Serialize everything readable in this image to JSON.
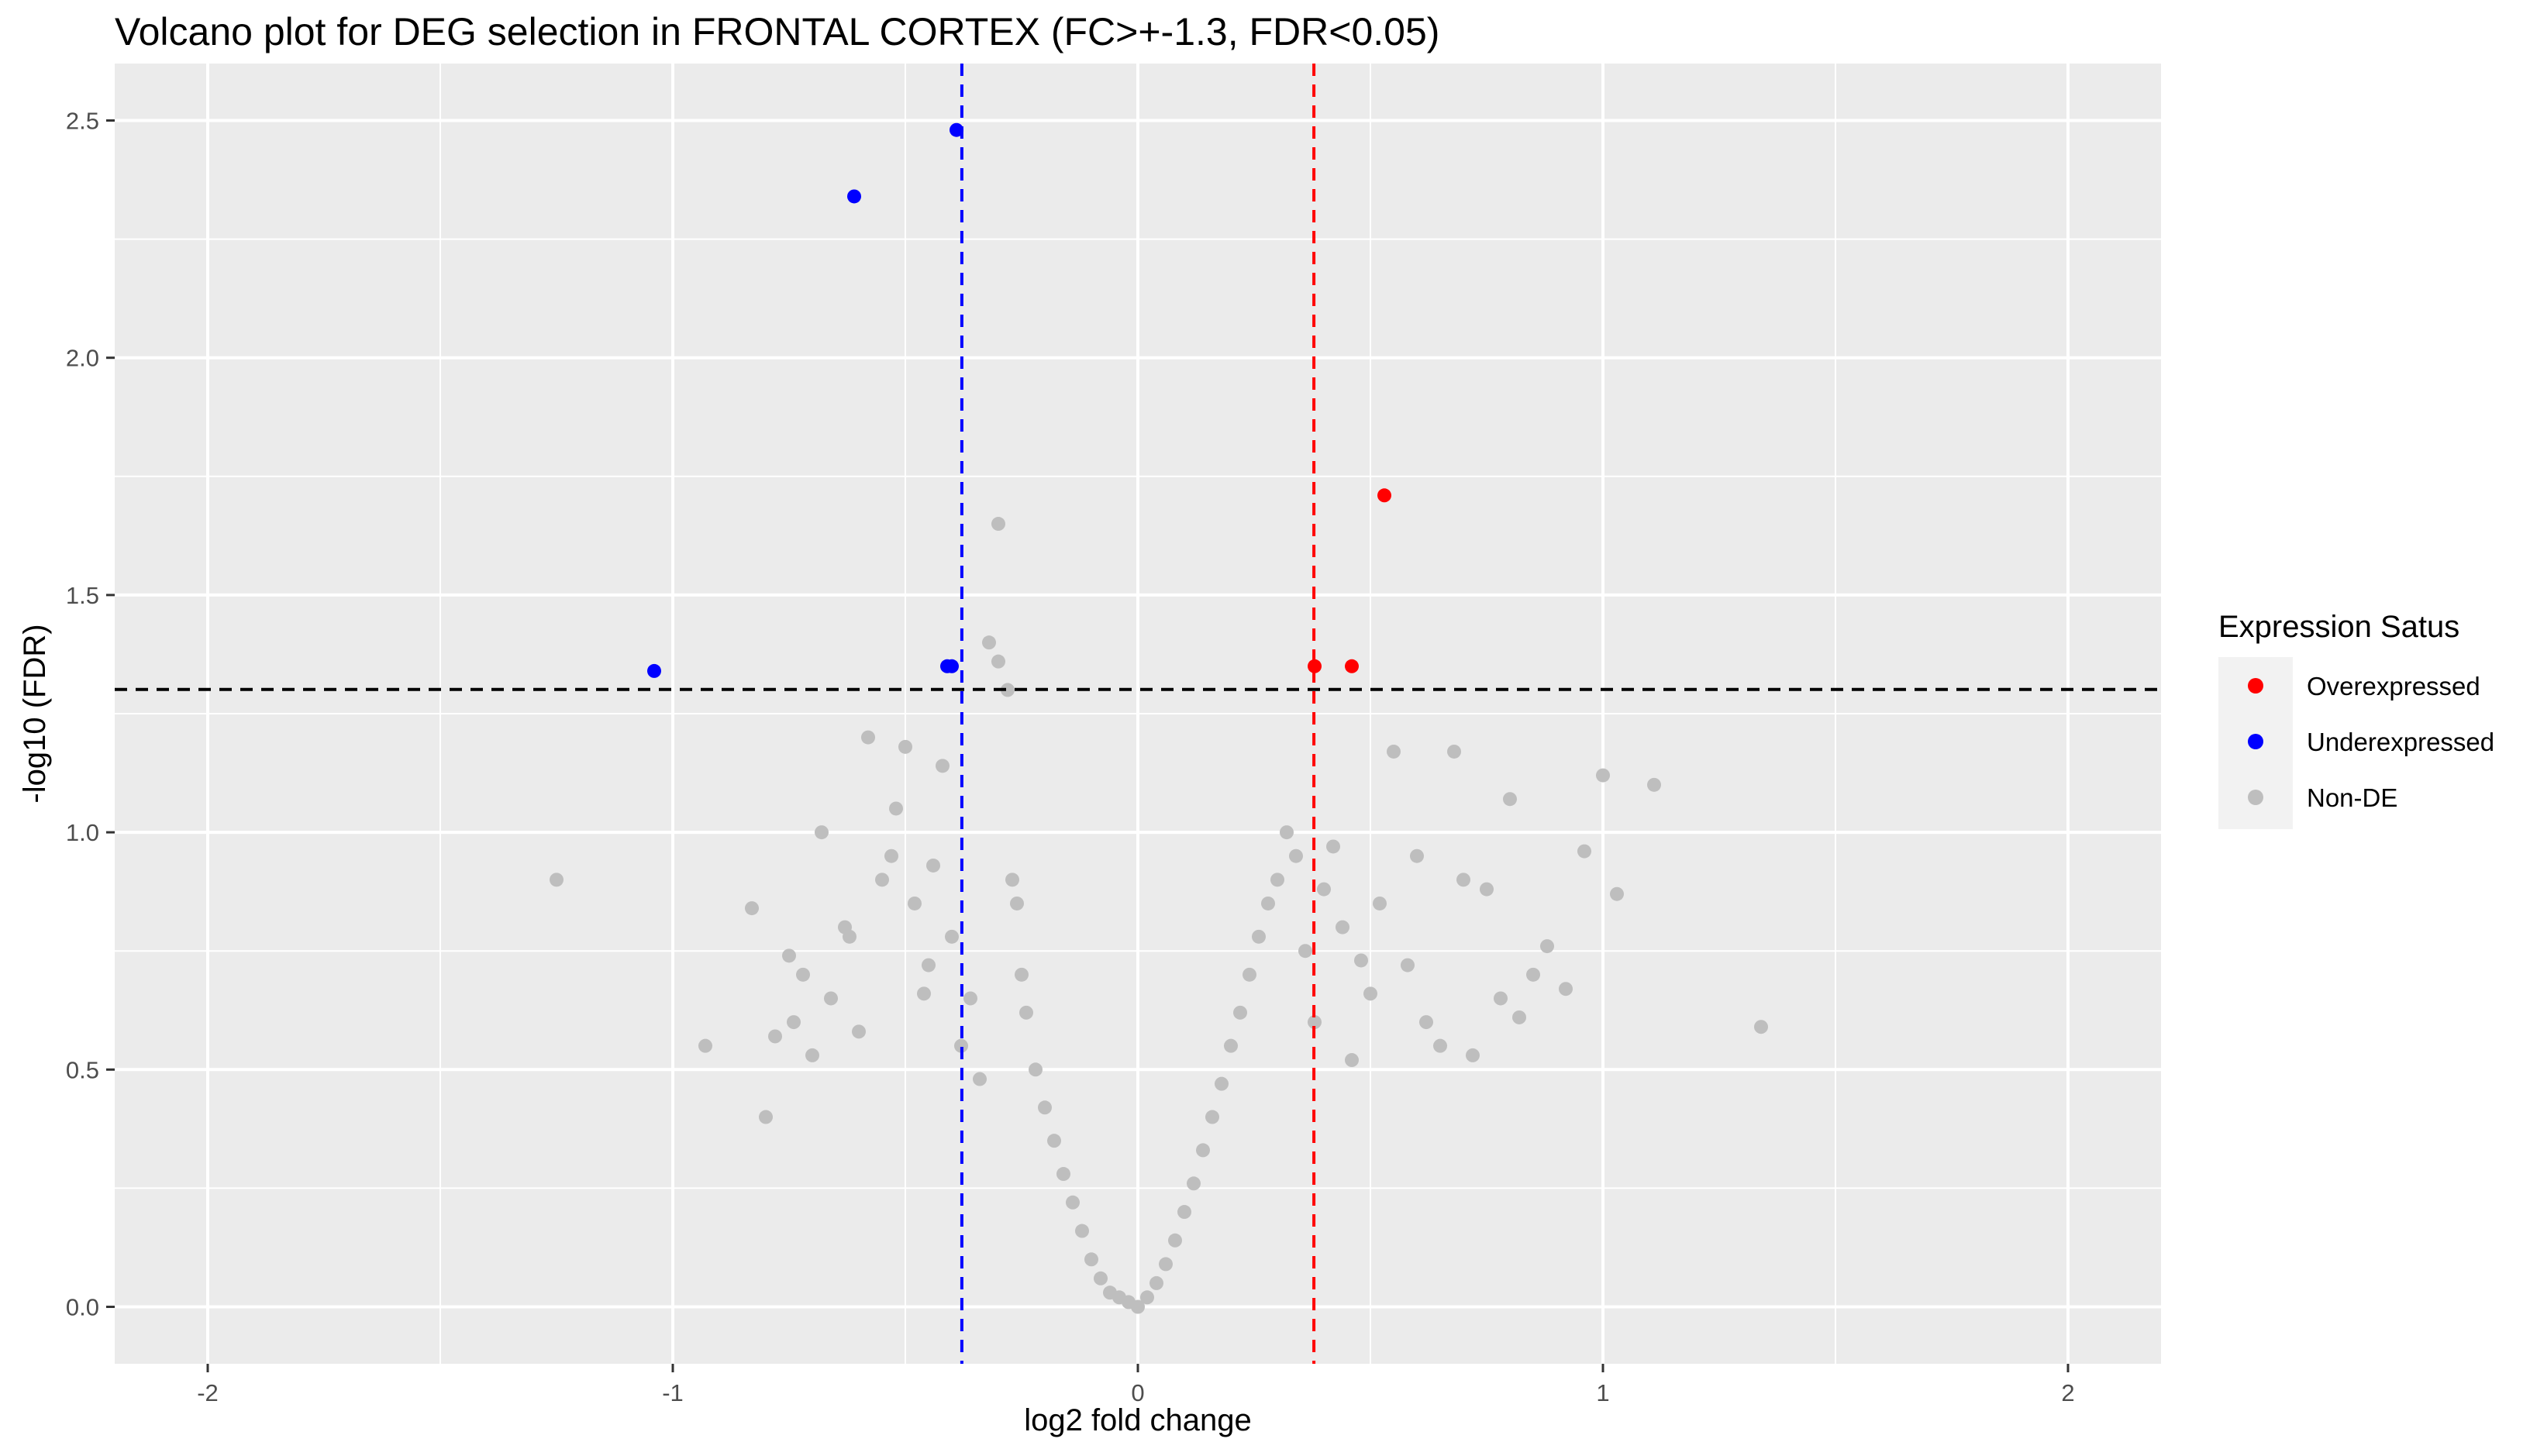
{
  "chart_data": {
    "type": "scatter",
    "title": "Volcano plot for DEG selection in FRONTAL CORTEX (FC>+-1.3, FDR<0.05)",
    "xlabel": "log2 fold change",
    "ylabel": "-log10 (FDR)",
    "xlim": [
      -2.2,
      2.2
    ],
    "ylim": [
      -0.12,
      2.62
    ],
    "x_ticks": [
      -2,
      -1,
      0,
      1,
      2
    ],
    "x_tick_labels": [
      "-2",
      "-1",
      "0",
      "1",
      "2"
    ],
    "y_ticks": [
      0.0,
      0.5,
      1.0,
      1.5,
      2.0,
      2.5
    ],
    "y_tick_labels": [
      "0.0",
      "0.5",
      "1.0",
      "1.5",
      "2.0",
      "2.5"
    ],
    "grid": true,
    "legend": {
      "title": "Expression Satus",
      "placement": "right",
      "entries": [
        {
          "label": "Overexpressed",
          "color": "#FF0000"
        },
        {
          "label": "Underexpressed",
          "color": "#0000FF"
        },
        {
          "label": "Non-DE",
          "color": "#BEBEBE"
        }
      ]
    },
    "reference_lines": [
      {
        "axis": "x",
        "value": -0.3785,
        "color": "#0000FF",
        "style": "dashed"
      },
      {
        "axis": "x",
        "value": 0.3785,
        "color": "#FF0000",
        "style": "dashed"
      },
      {
        "axis": "y",
        "value": 1.301,
        "color": "#000000",
        "style": "dashed"
      }
    ],
    "series": [
      {
        "name": "Overexpressed",
        "color": "#FF0000",
        "x": [
          0.38,
          0.46,
          0.53
        ],
        "y": [
          1.35,
          1.35,
          1.71
        ]
      },
      {
        "name": "Underexpressed",
        "color": "#0000FF",
        "x": [
          -1.04,
          -0.61,
          -0.41,
          -0.4,
          -0.39
        ],
        "y": [
          1.34,
          2.34,
          1.35,
          1.35,
          2.48
        ]
      },
      {
        "name": "Non-DE",
        "color": "#BEBEBE",
        "x": [
          -1.25,
          -0.93,
          -0.83,
          -0.8,
          -0.78,
          -0.75,
          -0.74,
          -0.72,
          -0.7,
          -0.68,
          -0.66,
          -0.63,
          -0.62,
          -0.6,
          -0.58,
          -0.55,
          -0.53,
          -0.52,
          -0.5,
          -0.48,
          -0.46,
          -0.45,
          -0.44,
          -0.42,
          -0.4,
          -0.38,
          -0.36,
          -0.34,
          -0.32,
          -0.3,
          -0.3,
          -0.28,
          -0.27,
          -0.26,
          -0.25,
          -0.24,
          -0.22,
          -0.2,
          -0.18,
          -0.16,
          -0.14,
          -0.12,
          -0.1,
          -0.08,
          -0.06,
          -0.04,
          -0.02,
          0.0,
          0.02,
          0.04,
          0.06,
          0.08,
          0.1,
          0.12,
          0.14,
          0.16,
          0.18,
          0.2,
          0.22,
          0.24,
          0.26,
          0.28,
          0.3,
          0.32,
          0.34,
          0.36,
          0.38,
          0.4,
          0.42,
          0.44,
          0.46,
          0.48,
          0.5,
          0.52,
          0.55,
          0.58,
          0.6,
          0.62,
          0.65,
          0.68,
          0.7,
          0.72,
          0.75,
          0.78,
          0.8,
          0.82,
          0.85,
          0.88,
          0.92,
          0.96,
          1.0,
          1.03,
          1.11,
          1.34
        ],
        "y": [
          0.9,
          0.55,
          0.84,
          0.4,
          0.57,
          0.74,
          0.6,
          0.7,
          0.53,
          1.0,
          0.65,
          0.8,
          0.78,
          0.58,
          1.2,
          0.9,
          0.95,
          1.05,
          1.18,
          0.85,
          0.66,
          0.72,
          0.93,
          1.14,
          0.78,
          0.55,
          0.65,
          0.48,
          1.4,
          1.65,
          1.36,
          1.3,
          0.9,
          0.85,
          0.7,
          0.62,
          0.5,
          0.42,
          0.35,
          0.28,
          0.22,
          0.16,
          0.1,
          0.06,
          0.03,
          0.02,
          0.01,
          0.0,
          0.02,
          0.05,
          0.09,
          0.14,
          0.2,
          0.26,
          0.33,
          0.4,
          0.47,
          0.55,
          0.62,
          0.7,
          0.78,
          0.85,
          0.9,
          1.0,
          0.95,
          0.75,
          0.6,
          0.88,
          0.97,
          0.8,
          0.52,
          0.73,
          0.66,
          0.85,
          1.17,
          0.72,
          0.95,
          0.6,
          0.55,
          1.17,
          0.9,
          0.53,
          0.88,
          0.65,
          1.07,
          0.61,
          0.7,
          0.76,
          0.67,
          0.96,
          1.12,
          0.87,
          1.1,
          0.59
        ]
      }
    ]
  }
}
